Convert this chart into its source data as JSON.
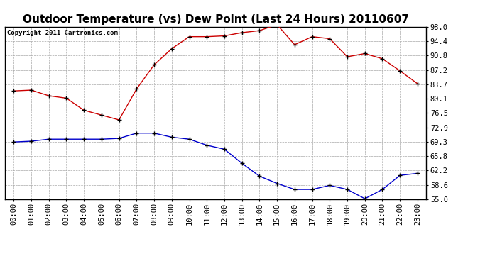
{
  "title": "Outdoor Temperature (vs) Dew Point (Last 24 Hours) 20110607",
  "copyright_text": "Copyright 2011 Cartronics.com",
  "x_labels": [
    "00:00",
    "01:00",
    "02:00",
    "03:00",
    "04:00",
    "05:00",
    "06:00",
    "07:00",
    "08:00",
    "09:00",
    "10:00",
    "11:00",
    "12:00",
    "13:00",
    "14:00",
    "15:00",
    "16:00",
    "17:00",
    "18:00",
    "19:00",
    "20:00",
    "21:00",
    "22:00",
    "23:00"
  ],
  "temp_red": [
    82.0,
    82.2,
    80.8,
    80.2,
    77.2,
    76.0,
    74.8,
    82.5,
    88.5,
    92.5,
    95.5,
    95.5,
    95.7,
    96.5,
    97.0,
    98.5,
    93.5,
    95.5,
    95.0,
    90.5,
    91.3,
    90.0,
    87.0,
    83.8
  ],
  "dew_blue": [
    69.3,
    69.5,
    70.0,
    70.0,
    70.0,
    70.0,
    70.2,
    71.5,
    71.5,
    70.5,
    70.0,
    68.5,
    67.5,
    64.0,
    60.8,
    59.0,
    57.5,
    57.5,
    58.5,
    57.5,
    55.2,
    57.5,
    61.0,
    61.5
  ],
  "ylim": [
    55.0,
    98.0
  ],
  "yticks": [
    55.0,
    58.6,
    62.2,
    65.8,
    69.3,
    72.9,
    76.5,
    80.1,
    83.7,
    87.2,
    90.8,
    94.4,
    98.0
  ],
  "red_color": "#cc0000",
  "blue_color": "#0000cc",
  "bg_color": "#ffffff",
  "grid_color": "#aaaaaa",
  "title_fontsize": 11,
  "tick_fontsize": 7.5,
  "copyright_fontsize": 6.5
}
